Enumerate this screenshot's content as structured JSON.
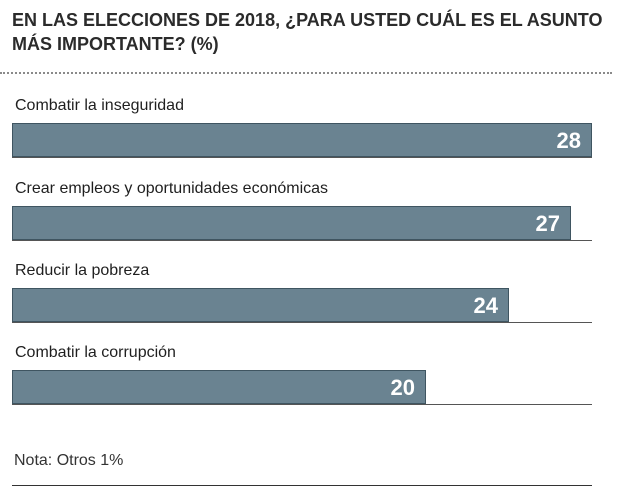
{
  "chart_data": {
    "type": "bar",
    "orientation": "horizontal",
    "title": "EN LAS ELECCIONES DE 2018, ¿PARA USTED CUÁL ES EL ASUNTO MÁS IMPORTANTE? (%)",
    "categories": [
      "Combatir la inseguridad",
      "Crear empleos y oportunidades económicas",
      "Reducir la pobreza",
      "Combatir la corrupción"
    ],
    "values": [
      28,
      27,
      24,
      20
    ],
    "value_labels": [
      "28",
      "27",
      "24",
      "20"
    ],
    "xlim": [
      0,
      28
    ],
    "grid": false,
    "bar_color": "#6a8391",
    "note": "Nota: Otros 1%"
  }
}
